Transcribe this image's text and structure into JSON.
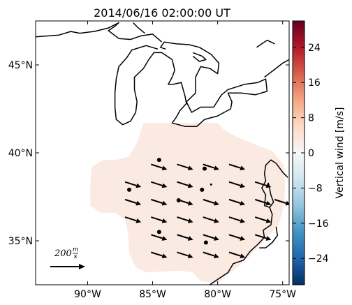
{
  "chart_data": {
    "type": "map",
    "title": "2014/06/16 02:00:00 UT",
    "x_ticks": [
      {
        "value": -90,
        "label": "90°W"
      },
      {
        "value": -85,
        "label": "85°W"
      },
      {
        "value": -80,
        "label": "80°W"
      },
      {
        "value": -75,
        "label": "75°W"
      }
    ],
    "y_ticks": [
      {
        "value": 35,
        "label": "35°N"
      },
      {
        "value": 40,
        "label": "40°N"
      },
      {
        "value": 45,
        "label": "45°N"
      }
    ],
    "lon_range": [
      -94.0,
      -74.5
    ],
    "lat_range": [
      32.5,
      47.5
    ],
    "colorbar": {
      "label": "Vertical wind [m/s]",
      "range": [
        -30,
        30
      ],
      "ticks": [
        {
          "value": 24,
          "label": "24"
        },
        {
          "value": 16,
          "label": "16"
        },
        {
          "value": 8,
          "label": "8"
        },
        {
          "value": 0,
          "label": "0"
        },
        {
          "value": -8,
          "label": "−8"
        },
        {
          "value": -16,
          "label": "−16"
        },
        {
          "value": -24,
          "label": "−24"
        }
      ],
      "colormap": "RdBu_r",
      "stops": [
        "#053061",
        "#2166ac",
        "#4393c3",
        "#92c5de",
        "#d1e5f0",
        "#f7f7f7",
        "#fddbc7",
        "#f4a582",
        "#d6604d",
        "#b2182b",
        "#67001f"
      ]
    },
    "field_value": 1.5,
    "field_color": "#fbeae2",
    "quiver_key": {
      "magnitude_text": "200",
      "units_numerator": "m",
      "units_denominator": "s"
    },
    "wind_vectors": [
      {
        "lon": -84.5,
        "lat": 39.2,
        "u": 110,
        "v": -35
      },
      {
        "lon": -82.5,
        "lat": 39.2,
        "u": 110,
        "v": -35
      },
      {
        "lon": -80.5,
        "lat": 39.2,
        "u": 110,
        "v": -35
      },
      {
        "lon": -78.5,
        "lat": 39.2,
        "u": 110,
        "v": -35
      },
      {
        "lon": -86.5,
        "lat": 38.2,
        "u": 110,
        "v": -35
      },
      {
        "lon": -84.5,
        "lat": 38.2,
        "u": 110,
        "v": -35
      },
      {
        "lon": -82.5,
        "lat": 38.2,
        "u": 110,
        "v": -35
      },
      {
        "lon": -80.5,
        "lat": 38.2,
        "u": 0,
        "v": 0
      },
      {
        "lon": -78.5,
        "lat": 38.2,
        "u": 110,
        "v": -35
      },
      {
        "lon": -76.5,
        "lat": 38.2,
        "u": 110,
        "v": -35
      },
      {
        "lon": -86.5,
        "lat": 37.2,
        "u": 110,
        "v": -35
      },
      {
        "lon": -84.5,
        "lat": 37.2,
        "u": 110,
        "v": -35
      },
      {
        "lon": -82.5,
        "lat": 37.2,
        "u": 110,
        "v": -35
      },
      {
        "lon": -80.5,
        "lat": 37.2,
        "u": 110,
        "v": -35
      },
      {
        "lon": -78.5,
        "lat": 37.2,
        "u": 110,
        "v": -35
      },
      {
        "lon": -76.5,
        "lat": 37.2,
        "u": 110,
        "v": -35
      },
      {
        "lon": -75.0,
        "lat": 37.2,
        "u": 110,
        "v": -35
      },
      {
        "lon": -86.5,
        "lat": 36.2,
        "u": 110,
        "v": -35
      },
      {
        "lon": -84.5,
        "lat": 36.2,
        "u": 110,
        "v": -35
      },
      {
        "lon": -82.5,
        "lat": 36.2,
        "u": 110,
        "v": -35
      },
      {
        "lon": -80.5,
        "lat": 36.2,
        "u": 110,
        "v": -35
      },
      {
        "lon": -78.5,
        "lat": 36.2,
        "u": 110,
        "v": -35
      },
      {
        "lon": -76.5,
        "lat": 36.2,
        "u": 110,
        "v": -35
      },
      {
        "lon": -84.5,
        "lat": 35.2,
        "u": 110,
        "v": -35
      },
      {
        "lon": -82.5,
        "lat": 35.2,
        "u": 110,
        "v": -35
      },
      {
        "lon": -80.5,
        "lat": 35.2,
        "u": 110,
        "v": -35
      },
      {
        "lon": -78.5,
        "lat": 35.2,
        "u": 110,
        "v": -35
      },
      {
        "lon": -76.5,
        "lat": 35.2,
        "u": 110,
        "v": -35
      },
      {
        "lon": -84.5,
        "lat": 34.2,
        "u": 110,
        "v": -35
      },
      {
        "lon": -82.5,
        "lat": 34.2,
        "u": 110,
        "v": -35
      },
      {
        "lon": -80.5,
        "lat": 34.2,
        "u": 110,
        "v": -35
      },
      {
        "lon": -78.5,
        "lat": 34.2,
        "u": 110,
        "v": -35
      }
    ],
    "station_points": [
      {
        "lon": -84.5,
        "lat": 39.6
      },
      {
        "lon": -81.0,
        "lat": 39.1
      },
      {
        "lon": -86.8,
        "lat": 37.9
      },
      {
        "lon": -83.0,
        "lat": 37.3
      },
      {
        "lon": -81.2,
        "lat": 37.9
      },
      {
        "lon": -84.5,
        "lat": 35.5
      },
      {
        "lon": -80.9,
        "lat": 34.9
      }
    ],
    "field_outline": [
      [
        -85.7,
        41.7
      ],
      [
        -80.0,
        41.7
      ],
      [
        -79.5,
        41.3
      ],
      [
        -78.5,
        40.9
      ],
      [
        -77.2,
        40.5
      ],
      [
        -75.8,
        40.1
      ],
      [
        -74.9,
        39.3
      ],
      [
        -74.8,
        38.2
      ],
      [
        -74.9,
        37.0
      ],
      [
        -75.3,
        35.9
      ],
      [
        -76.6,
        34.9
      ],
      [
        -77.6,
        34.1
      ],
      [
        -78.8,
        33.3
      ],
      [
        -80.0,
        32.6
      ],
      [
        -81.3,
        32.7
      ],
      [
        -81.9,
        33.2
      ],
      [
        -83.0,
        33.3
      ],
      [
        -85.5,
        33.2
      ],
      [
        -86.3,
        33.5
      ],
      [
        -86.8,
        34.3
      ],
      [
        -86.9,
        35.4
      ],
      [
        -87.1,
        36.2
      ],
      [
        -87.9,
        36.6
      ],
      [
        -89.0,
        36.6
      ],
      [
        -89.8,
        37.0
      ],
      [
        -89.8,
        38.1
      ],
      [
        -89.7,
        39.2
      ],
      [
        -88.8,
        39.6
      ],
      [
        -87.8,
        39.6
      ],
      [
        -86.8,
        39.8
      ],
      [
        -86.2,
        40.6
      ]
    ],
    "coastlines": [
      [
        [
          -94.0,
          46.6
        ],
        [
          -92.2,
          46.7
        ],
        [
          -91.3,
          46.9
        ],
        [
          -90.6,
          46.8
        ],
        [
          -89.5,
          46.9
        ],
        [
          -88.4,
          47.1
        ],
        [
          -87.6,
          47.4
        ],
        [
          -87.9,
          47.2
        ],
        [
          -88.4,
          46.95
        ],
        [
          -87.6,
          46.5
        ],
        [
          -86.7,
          46.45
        ],
        [
          -85.9,
          46.65
        ],
        [
          -85.0,
          46.75
        ],
        [
          -84.6,
          46.5
        ],
        [
          -84.3,
          46.3
        ]
      ],
      [
        [
          -86.5,
          47.4
        ],
        [
          -86.1,
          47.1
        ],
        [
          -85.6,
          46.8
        ]
      ],
      [
        [
          -84.6,
          45.9
        ],
        [
          -85.5,
          46.1
        ],
        [
          -86.6,
          45.85
        ],
        [
          -87.0,
          45.4
        ],
        [
          -87.6,
          44.9
        ],
        [
          -87.8,
          44.2
        ],
        [
          -87.9,
          43.4
        ],
        [
          -87.9,
          42.6
        ],
        [
          -87.8,
          41.9
        ],
        [
          -87.3,
          41.6
        ],
        [
          -86.7,
          41.8
        ],
        [
          -86.3,
          42.3
        ],
        [
          -86.2,
          42.9
        ],
        [
          -86.4,
          43.6
        ],
        [
          -86.4,
          44.3
        ],
        [
          -85.7,
          44.8
        ],
        [
          -85.3,
          45.3
        ],
        [
          -84.9,
          45.7
        ],
        [
          -84.3,
          45.7
        ],
        [
          -83.5,
          45.3
        ],
        [
          -83.3,
          44.7
        ],
        [
          -83.5,
          44.3
        ],
        [
          -83.8,
          43.9
        ],
        [
          -83.4,
          43.9
        ],
        [
          -82.8,
          44.0
        ],
        [
          -82.5,
          43.2
        ],
        [
          -82.4,
          42.8
        ],
        [
          -82.9,
          42.4
        ],
        [
          -83.2,
          42.0
        ],
        [
          -83.5,
          41.7
        ],
        [
          -82.5,
          41.5
        ],
        [
          -81.6,
          41.5
        ],
        [
          -81.0,
          41.9
        ],
        [
          -80.0,
          42.1
        ],
        [
          -79.0,
          42.5
        ],
        [
          -78.9,
          42.9
        ],
        [
          -79.2,
          43.4
        ],
        [
          -78.2,
          43.4
        ],
        [
          -77.1,
          43.3
        ],
        [
          -76.2,
          43.5
        ],
        [
          -76.3,
          44.2
        ],
        [
          -76.9,
          44.0
        ],
        [
          -77.9,
          43.9
        ],
        [
          -79.2,
          43.6
        ],
        [
          -79.7,
          43.3
        ],
        [
          -80.3,
          42.6
        ],
        [
          -81.3,
          42.6
        ],
        [
          -82.0,
          42.3
        ],
        [
          -82.4,
          42.9
        ],
        [
          -81.7,
          43.4
        ],
        [
          -81.7,
          44.3
        ],
        [
          -81.3,
          44.9
        ],
        [
          -80.6,
          44.8
        ],
        [
          -80.0,
          44.5
        ],
        [
          -79.9,
          45.1
        ],
        [
          -80.5,
          45.6
        ],
        [
          -81.4,
          46.0
        ],
        [
          -82.2,
          46.15
        ],
        [
          -83.2,
          46.2
        ],
        [
          -84.1,
          46.3
        ],
        [
          -84.4,
          46.0
        ],
        [
          -84.0,
          45.9
        ]
      ],
      [
        [
          -81.9,
          45.7
        ],
        [
          -81.2,
          45.5
        ],
        [
          -80.9,
          45.3
        ],
        [
          -81.4,
          45.2
        ],
        [
          -81.9,
          45.5
        ]
      ],
      [
        [
          -76.4,
          44.3
        ],
        [
          -75.7,
          44.7
        ],
        [
          -75.0,
          45.1
        ],
        [
          -74.5,
          45.3
        ]
      ],
      [
        [
          -77.0,
          46.0
        ],
        [
          -76.2,
          46.4
        ],
        [
          -75.6,
          46.2
        ]
      ],
      [
        [
          -74.6,
          38.6
        ],
        [
          -75.0,
          38.9
        ],
        [
          -75.5,
          39.4
        ],
        [
          -75.9,
          39.6
        ],
        [
          -76.3,
          39.3
        ],
        [
          -76.4,
          38.8
        ],
        [
          -76.3,
          38.4
        ],
        [
          -76.6,
          38.0
        ],
        [
          -76.3,
          37.6
        ],
        [
          -76.4,
          37.0
        ],
        [
          -76.0,
          36.9
        ],
        [
          -75.8,
          36.5
        ],
        [
          -75.9,
          35.9
        ],
        [
          -76.5,
          35.6
        ],
        [
          -76.4,
          35.2
        ],
        [
          -76.9,
          34.8
        ],
        [
          -77.5,
          34.4
        ],
        [
          -78.0,
          33.9
        ],
        [
          -78.8,
          33.7
        ],
        [
          -79.2,
          33.2
        ],
        [
          -80.0,
          32.8
        ],
        [
          -80.6,
          32.5
        ]
      ],
      [
        [
          -76.1,
          38.3
        ],
        [
          -75.9,
          37.6
        ],
        [
          -75.7,
          37.2
        ],
        [
          -76.0,
          36.9
        ]
      ],
      [
        [
          -75.5,
          35.8
        ],
        [
          -75.4,
          35.3
        ],
        [
          -75.8,
          34.9
        ],
        [
          -76.3,
          34.6
        ],
        [
          -76.8,
          34.6
        ]
      ]
    ]
  }
}
